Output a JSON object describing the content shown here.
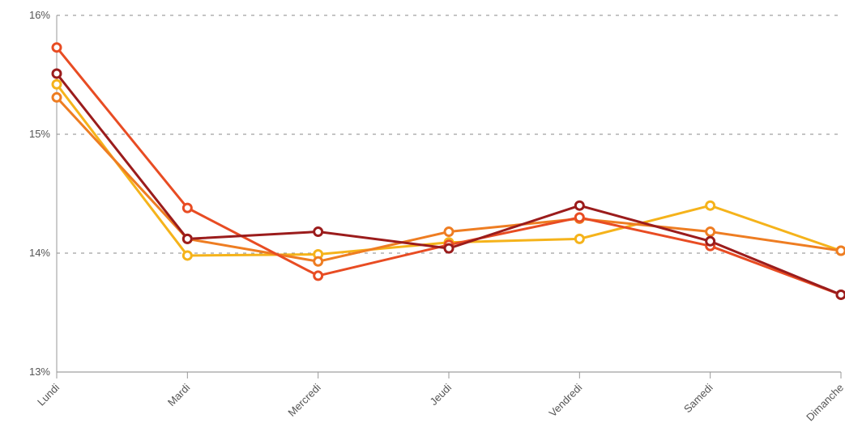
{
  "chart_data": {
    "type": "line",
    "categories": [
      "Lundi",
      "Mardi",
      "Mercredi",
      "Jeudi",
      "Vendredi",
      "Samedi",
      "Dimanche"
    ],
    "series": [
      {
        "color": "#f5b31b",
        "values": [
          15.42,
          13.98,
          13.99,
          14.09,
          14.12,
          14.4,
          14.02
        ]
      },
      {
        "color": "#ee7d22",
        "values": [
          15.31,
          14.12,
          13.93,
          14.18,
          14.29,
          14.18,
          14.02
        ]
      },
      {
        "color": "#e84c23",
        "values": [
          15.73,
          14.38,
          13.81,
          14.07,
          14.3,
          14.06,
          13.65
        ]
      },
      {
        "color": "#9b1c1c",
        "values": [
          15.51,
          14.12,
          14.18,
          14.04,
          14.4,
          14.1,
          13.65
        ]
      }
    ],
    "ylim": [
      13,
      16
    ],
    "yticks": [
      {
        "value": 13,
        "label": "13%"
      },
      {
        "value": 14,
        "label": "14%"
      },
      {
        "value": 15,
        "label": "15%"
      },
      {
        "value": 16,
        "label": "16%"
      }
    ],
    "grid": true
  }
}
